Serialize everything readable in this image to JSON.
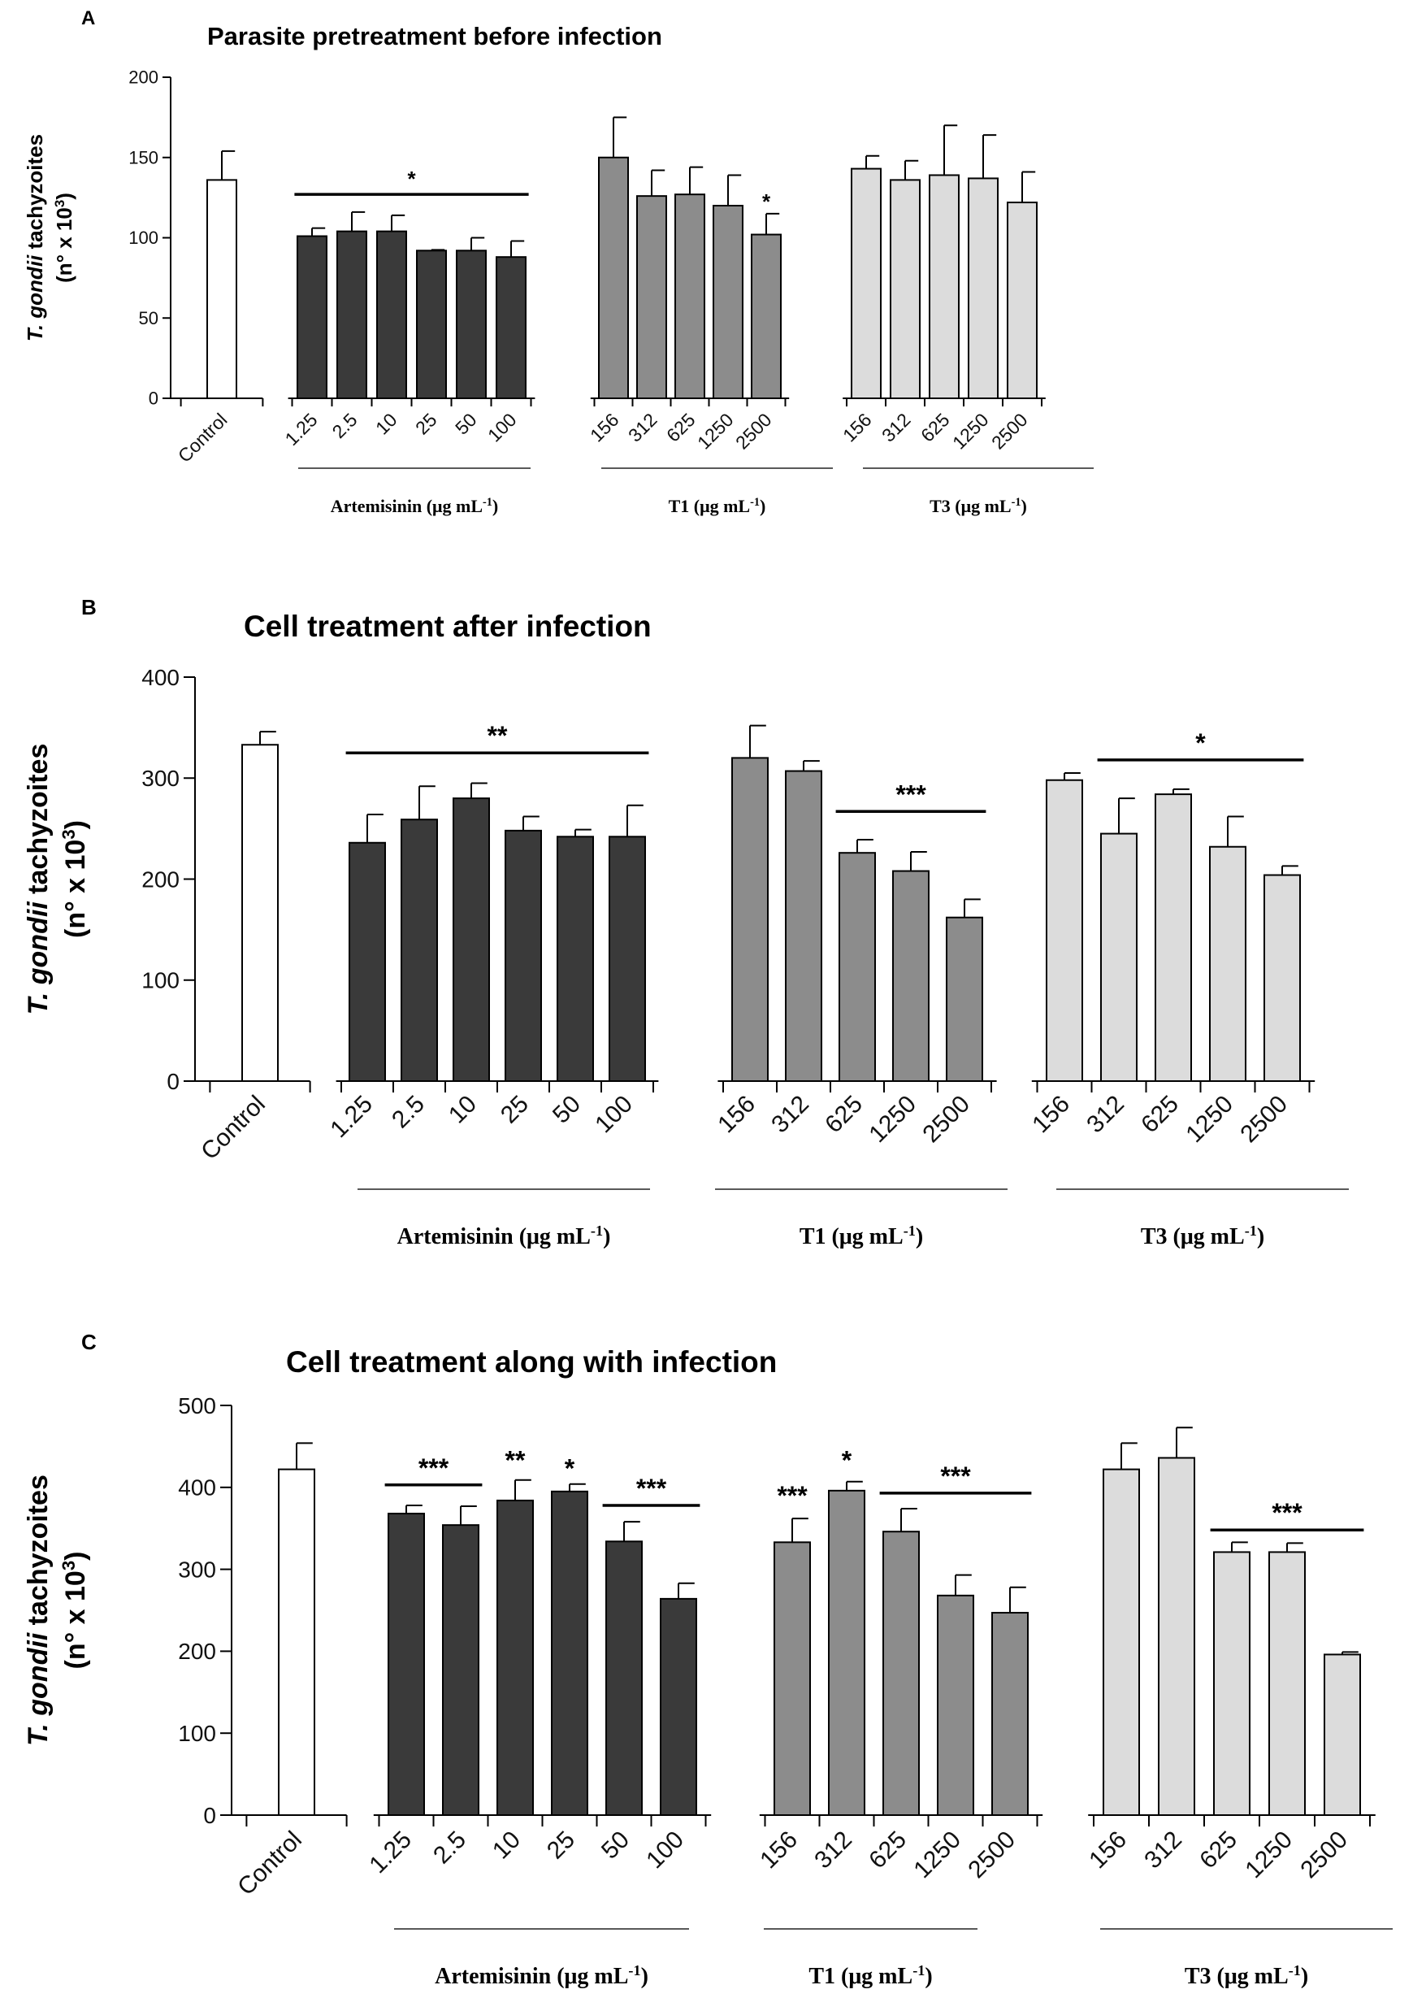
{
  "chart_data": [
    {
      "type": "bar",
      "panel_letter": "A",
      "title": "Parasite pretreatment before infection",
      "ylabel_italic": "T. gondii",
      "ylabel_rest": "tachyzoites",
      "ylabel_line2": "(n° x 10",
      "ylabel_exp": "3",
      "ylabel_close": ")",
      "ylim": [
        0,
        200
      ],
      "yticks": [
        0,
        50,
        100,
        150,
        200
      ],
      "groups": [
        {
          "label": "",
          "unit": "",
          "color": "#ffffff",
          "categories": [
            "Control"
          ],
          "values": [
            136
          ],
          "errors": [
            18
          ]
        },
        {
          "label": "Artemisinin (μg mL",
          "unit": "-1",
          "color": "#3a3a3a",
          "categories": [
            "1.25",
            "2.5",
            "10",
            "25",
            "50",
            "100"
          ],
          "values": [
            101,
            104,
            104,
            92,
            92,
            88
          ],
          "errors": [
            5,
            12,
            10,
            0.5,
            8,
            10
          ]
        },
        {
          "label": "T1 (μg mL",
          "unit": "-1",
          "color": "#8c8c8c",
          "categories": [
            "156",
            "312",
            "625",
            "1250",
            "2500"
          ],
          "values": [
            150,
            126,
            127,
            120,
            102
          ],
          "errors": [
            25,
            16,
            17,
            19,
            13
          ]
        },
        {
          "label": "T3 (μg mL",
          "unit": "-1",
          "color": "#dcdcdc",
          "categories": [
            "156",
            "312",
            "625",
            "1250",
            "2500"
          ],
          "values": [
            143,
            136,
            139,
            137,
            122
          ],
          "errors": [
            8,
            12,
            31,
            27,
            19
          ]
        }
      ],
      "annotations": [
        {
          "text": "*",
          "group": 1,
          "from": 0,
          "to": 5,
          "y": 127
        },
        {
          "text": "*",
          "group": 2,
          "from": 4,
          "to": 4,
          "y": 116
        }
      ]
    },
    {
      "type": "bar",
      "panel_letter": "B",
      "title": "Cell treatment after infection",
      "ylabel_italic": "T. gondii",
      "ylabel_rest": "tachyzoites",
      "ylabel_line2": "(n° x 10",
      "ylabel_exp": "3",
      "ylabel_close": ")",
      "ylim": [
        0,
        400
      ],
      "yticks": [
        0,
        100,
        200,
        300,
        400
      ],
      "groups": [
        {
          "label": "",
          "unit": "",
          "color": "#ffffff",
          "categories": [
            "Control"
          ],
          "values": [
            333
          ],
          "errors": [
            13
          ]
        },
        {
          "label": "Artemisinin (μg mL",
          "unit": "-1",
          "color": "#3a3a3a",
          "categories": [
            "1.25",
            "2.5",
            "10",
            "25",
            "50",
            "100"
          ],
          "values": [
            236,
            259,
            280,
            248,
            242,
            242
          ],
          "errors": [
            28,
            33,
            15,
            14,
            7,
            31
          ]
        },
        {
          "label": "T1 (μg mL",
          "unit": "-1",
          "color": "#8c8c8c",
          "categories": [
            "156",
            "312",
            "625",
            "1250",
            "2500"
          ],
          "values": [
            320,
            307,
            226,
            208,
            162
          ],
          "errors": [
            32,
            10,
            13,
            19,
            18
          ]
        },
        {
          "label": "T3 (μg mL",
          "unit": "-1",
          "color": "#dcdcdc",
          "categories": [
            "156",
            "312",
            "625",
            "1250",
            "2500"
          ],
          "values": [
            298,
            245,
            284,
            232,
            204
          ],
          "errors": [
            7,
            35,
            5,
            30,
            9
          ]
        }
      ],
      "annotations": [
        {
          "text": "**",
          "group": 1,
          "from": 0,
          "to": 5,
          "y": 325
        },
        {
          "text": "***",
          "group": 2,
          "from": 2,
          "to": 4,
          "y": 267
        },
        {
          "text": "*",
          "group": 3,
          "from": 1,
          "to": 4,
          "y": 318
        }
      ]
    },
    {
      "type": "bar",
      "panel_letter": "C",
      "title": "Cell treatment along with infection",
      "ylabel_italic": "T. gondii",
      "ylabel_rest": "tachyzoites",
      "ylabel_line2": "(n° x 10",
      "ylabel_exp": "3",
      "ylabel_close": ")",
      "ylim": [
        0,
        500
      ],
      "yticks": [
        0,
        100,
        200,
        300,
        400,
        500
      ],
      "groups": [
        {
          "label": "",
          "unit": "",
          "color": "#ffffff",
          "categories": [
            "Control"
          ],
          "values": [
            422
          ],
          "errors": [
            32
          ]
        },
        {
          "label": "Artemisinin (μg mL",
          "unit": "-1",
          "color": "#3a3a3a",
          "categories": [
            "1.25",
            "2.5",
            "10",
            "25",
            "50",
            "100"
          ],
          "values": [
            368,
            354,
            384,
            395,
            334,
            264
          ],
          "errors": [
            10,
            23,
            25,
            9,
            24,
            19
          ]
        },
        {
          "label": "T1 (μg mL",
          "unit": "-1",
          "color": "#8c8c8c",
          "categories": [
            "156",
            "312",
            "625",
            "1250",
            "2500"
          ],
          "values": [
            333,
            396,
            346,
            268,
            247
          ],
          "errors": [
            29,
            11,
            28,
            25,
            31
          ]
        },
        {
          "label": "T3 (μg mL",
          "unit": "-1",
          "color": "#dcdcdc",
          "categories": [
            "156",
            "312",
            "625",
            "1250",
            "2500"
          ],
          "values": [
            422,
            436,
            321,
            321,
            196
          ],
          "errors": [
            32,
            37,
            12,
            11,
            3
          ]
        }
      ],
      "annotations": [
        {
          "text": "***",
          "group": 1,
          "from": 0,
          "to": 1,
          "y": 403,
          "symbol_y": 418
        },
        {
          "text": "**",
          "group": 1,
          "from": 2,
          "to": 2,
          "y": 418,
          "symbol_y": 418
        },
        {
          "text": "*",
          "group": 1,
          "from": 3,
          "to": 3,
          "y": 408,
          "symbol_y": 408
        },
        {
          "text": "***",
          "group": 1,
          "from": 4,
          "to": 5,
          "y": 378,
          "symbol_y": 393
        },
        {
          "text": "***",
          "group": 2,
          "from": 0,
          "to": 0,
          "y": 375,
          "symbol_y": 375
        },
        {
          "text": "*",
          "group": 2,
          "from": 1,
          "to": 1,
          "y": 418,
          "symbol_y": 418
        },
        {
          "text": "***",
          "group": 2,
          "from": 2,
          "to": 4,
          "y": 393,
          "symbol_y": 408
        },
        {
          "text": "***",
          "group": 3,
          "from": 2,
          "to": 4,
          "y": 348,
          "symbol_y": 363
        }
      ]
    }
  ]
}
